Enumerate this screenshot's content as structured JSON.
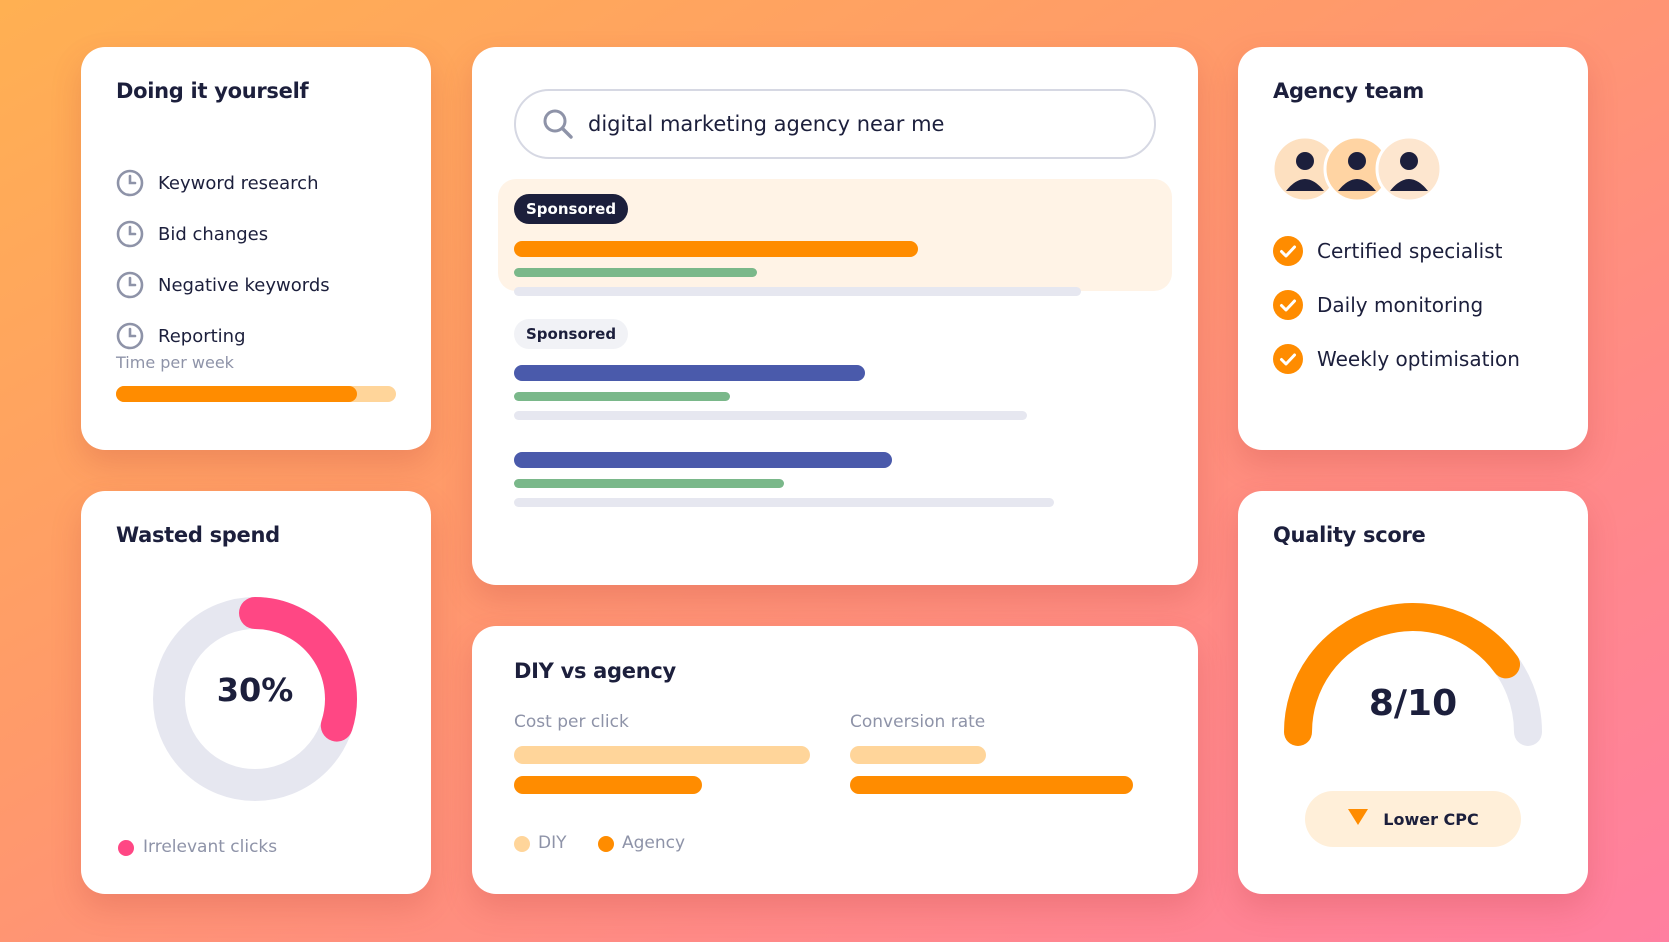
{
  "diy_card": {
    "title": "Doing it yourself",
    "items": [
      "Keyword research",
      "Bid changes",
      "Negative keywords",
      "Reporting"
    ],
    "item_icon": "clock-icon",
    "time_label": "Time per week",
    "time_fill_fraction": 0.86
  },
  "search_card": {
    "query": "digital marketing agency near me",
    "search_icon": "search-icon",
    "sponsored_label_1": "Sponsored",
    "sponsored_label_2": "Sponsored"
  },
  "agency_card": {
    "title": "Agency team",
    "avatar_icon": "person-icon",
    "items": [
      "Certified specialist",
      "Daily monitoring",
      "Weekly optimisation"
    ],
    "item_icon": "check-icon"
  },
  "wasted_card": {
    "title": "Wasted spend",
    "percent_label": "30%",
    "percent_value": 30,
    "legend": "Irrelevant clicks"
  },
  "compare_card": {
    "title": "DIY vs agency",
    "metric_1": "Cost per click",
    "metric_2": "Conversion rate",
    "legend_diy": "DIY",
    "legend_agency": "Agency"
  },
  "quality_card": {
    "title": "Quality score",
    "score_label": "8/10",
    "score_value": 8,
    "score_max": 10,
    "badge_label": "Lower CPC",
    "badge_icon": "triangle-down-icon"
  },
  "colors": {
    "orange": "#ff8c00",
    "light_orange": "#ffd59a",
    "navy": "#1c1f3c",
    "indigo": "#4a5aab",
    "green": "#7ab88a",
    "pink": "#ff4784",
    "track": "#e6e7f0"
  }
}
